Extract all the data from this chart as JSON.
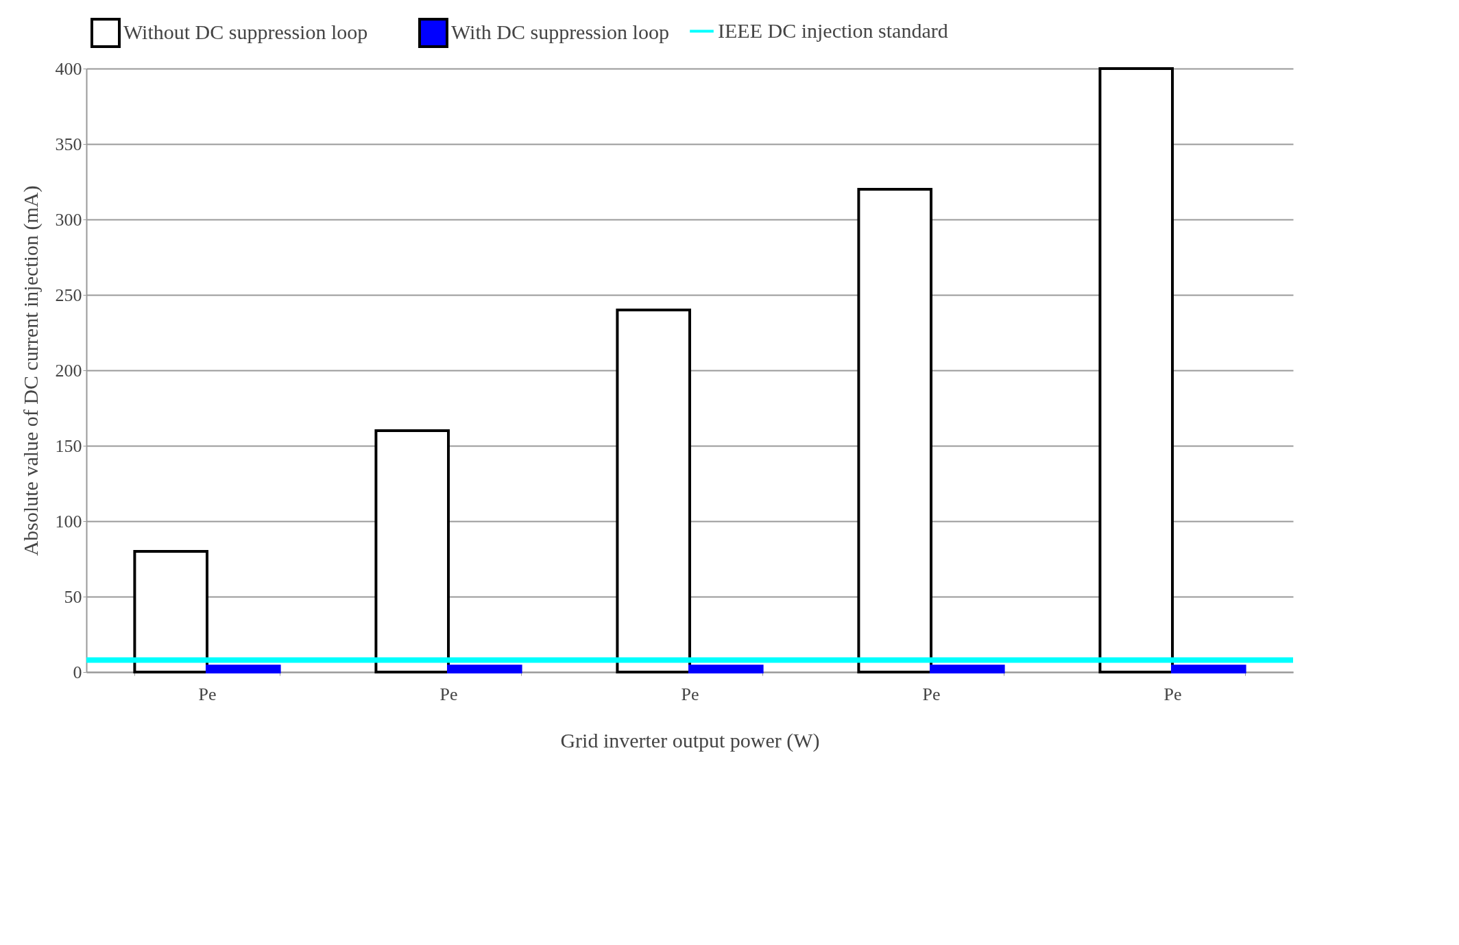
{
  "chart_data": {
    "type": "bar",
    "xlabel": "Grid inverter output power (W)",
    "ylabel": "Absolute value of DC current injection (mA)",
    "categories": [
      "Pe",
      "Pe",
      "Pe",
      "Pe",
      "Pe"
    ],
    "series": [
      {
        "name": "Without  DC suppression loop",
        "color": "#ffffff",
        "values": [
          80,
          160,
          240,
          320,
          400
        ]
      },
      {
        "name": "With  DC suppression loop",
        "color": "#0000ff",
        "values": [
          4,
          4,
          4,
          4,
          4
        ]
      }
    ],
    "ylim": [
      0,
      400
    ],
    "yticks": [
      0,
      50,
      100,
      150,
      200,
      250,
      300,
      350,
      400
    ],
    "grid": "y",
    "legend": "top",
    "ref_lines": [
      {
        "axis": "y",
        "value": 8,
        "label": "IEEE DC injection standard",
        "color": "#00ffff"
      }
    ]
  }
}
